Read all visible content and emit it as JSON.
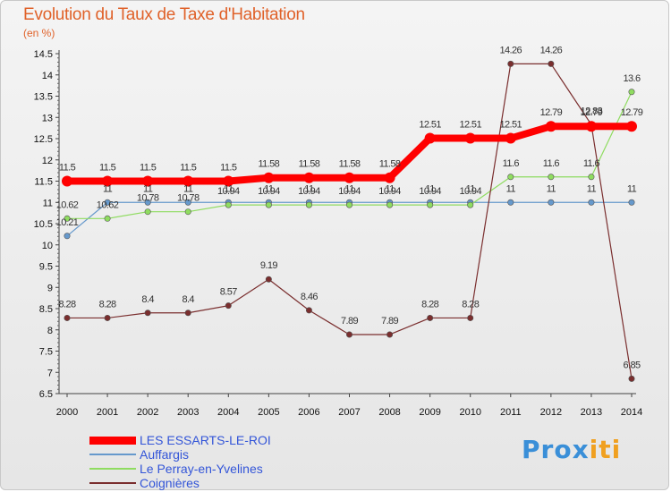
{
  "chart_data": {
    "type": "line",
    "title": "Evolution du Taux de Taxe d'Habitation",
    "subtitle": "(en %)",
    "x": [
      "2000",
      "2001",
      "2002",
      "2003",
      "2004",
      "2005",
      "2006",
      "2007",
      "2008",
      "2009",
      "2010",
      "2011",
      "2012",
      "2013",
      "2014"
    ],
    "y_ticks": [
      "6.5",
      "7",
      "7.5",
      "8",
      "8.5",
      "9",
      "9.5",
      "10",
      "10.5",
      "11",
      "11.5",
      "12",
      "12.5",
      "13",
      "13.5",
      "14",
      "14.5"
    ],
    "ylim": [
      6.5,
      14.5
    ],
    "grid": false,
    "legend_position": "bottom-left",
    "series": [
      {
        "name": "LES ESSARTS-LE-ROI",
        "color": "#ff0000",
        "values": [
          11.5,
          11.5,
          11.5,
          11.5,
          11.5,
          11.58,
          11.58,
          11.58,
          11.58,
          12.51,
          12.51,
          12.51,
          12.79,
          12.79,
          12.79
        ],
        "labels": [
          "11.5",
          "11.5",
          "11.5",
          "11.5",
          "11.5",
          "11.58",
          "11.58",
          "11.58",
          "11.58",
          "12.51",
          "12.51",
          "12.51",
          "12.79",
          "12.79",
          "12.79"
        ]
      },
      {
        "name": "Auffargis",
        "color": "#6699cc",
        "values": [
          10.21,
          11,
          11,
          11,
          11,
          11,
          11,
          11,
          11,
          11,
          11,
          11,
          11,
          11,
          11
        ],
        "labels": [
          "10.21",
          "11",
          "11",
          "11",
          "11",
          "11",
          "11",
          "11",
          "11",
          "11",
          "11",
          "11",
          "11",
          "11",
          "11"
        ]
      },
      {
        "name": "Le Perray-en-Yvelines",
        "color": "#8fdc60",
        "values": [
          10.62,
          10.62,
          10.78,
          10.78,
          10.94,
          10.94,
          10.94,
          10.94,
          10.94,
          10.94,
          10.94,
          11.6,
          11.6,
          11.6,
          13.6
        ],
        "labels": [
          "10.62",
          "10.62",
          "10.78",
          "10.78",
          "10.94",
          "10.94",
          "10.94",
          "10.94",
          "10.94",
          "10.94",
          "10.94",
          "11.6",
          "11.6",
          "11.6",
          "13.6"
        ]
      },
      {
        "name": "Coignières",
        "color": "#7a2e2e",
        "values": [
          8.28,
          8.28,
          8.4,
          8.4,
          8.57,
          9.19,
          8.46,
          7.89,
          7.89,
          8.28,
          8.28,
          14.26,
          14.26,
          12.83,
          6.85
        ],
        "labels": [
          "8.28",
          "8.28",
          "8.4",
          "8.4",
          "8.57",
          "9.19",
          "8.46",
          "7.89",
          "7.89",
          "8.28",
          "8.28",
          "14.26",
          "14.26",
          "12.83",
          "6.85"
        ]
      }
    ]
  },
  "logo": {
    "text": "Prox",
    "text2": "iti"
  }
}
